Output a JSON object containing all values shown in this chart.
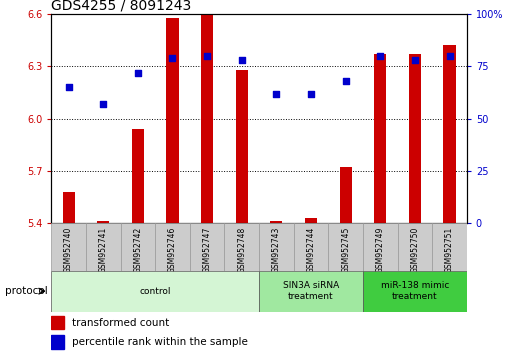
{
  "title": "GDS4255 / 8091243",
  "samples": [
    "GSM952740",
    "GSM952741",
    "GSM952742",
    "GSM952746",
    "GSM952747",
    "GSM952748",
    "GSM952743",
    "GSM952744",
    "GSM952745",
    "GSM952749",
    "GSM952750",
    "GSM952751"
  ],
  "transformed_counts": [
    5.58,
    5.41,
    5.94,
    6.58,
    6.6,
    6.28,
    5.41,
    5.43,
    5.72,
    6.37,
    6.37,
    6.42
  ],
  "percentile_ranks": [
    65,
    57,
    72,
    79,
    80,
    78,
    62,
    62,
    68,
    80,
    78,
    80
  ],
  "ylim_left": [
    5.4,
    6.6
  ],
  "ylim_right": [
    0,
    100
  ],
  "yticks_left": [
    5.4,
    5.7,
    6.0,
    6.3,
    6.6
  ],
  "yticks_right": [
    0,
    25,
    50,
    75,
    100
  ],
  "ytick_labels_right": [
    "0",
    "25",
    "50",
    "75",
    "100%"
  ],
  "groups": [
    {
      "label": "control",
      "start": 0,
      "end": 6,
      "color": "#d4f5d4"
    },
    {
      "label": "SIN3A siRNA\ntreatment",
      "start": 6,
      "end": 9,
      "color": "#a0e8a0"
    },
    {
      "label": "miR-138 mimic\ntreatment",
      "start": 9,
      "end": 12,
      "color": "#40cc40"
    }
  ],
  "bar_color": "#cc0000",
  "dot_color": "#0000cc",
  "bar_bottom": 5.4,
  "grid_color": "#000000",
  "bg_color": "#ffffff",
  "title_fontsize": 10,
  "tick_label_fontsize": 7,
  "axis_label_fontsize": 7,
  "legend_fontsize": 7.5,
  "protocol_label": "protocol",
  "legend_items": [
    "transformed count",
    "percentile rank within the sample"
  ]
}
